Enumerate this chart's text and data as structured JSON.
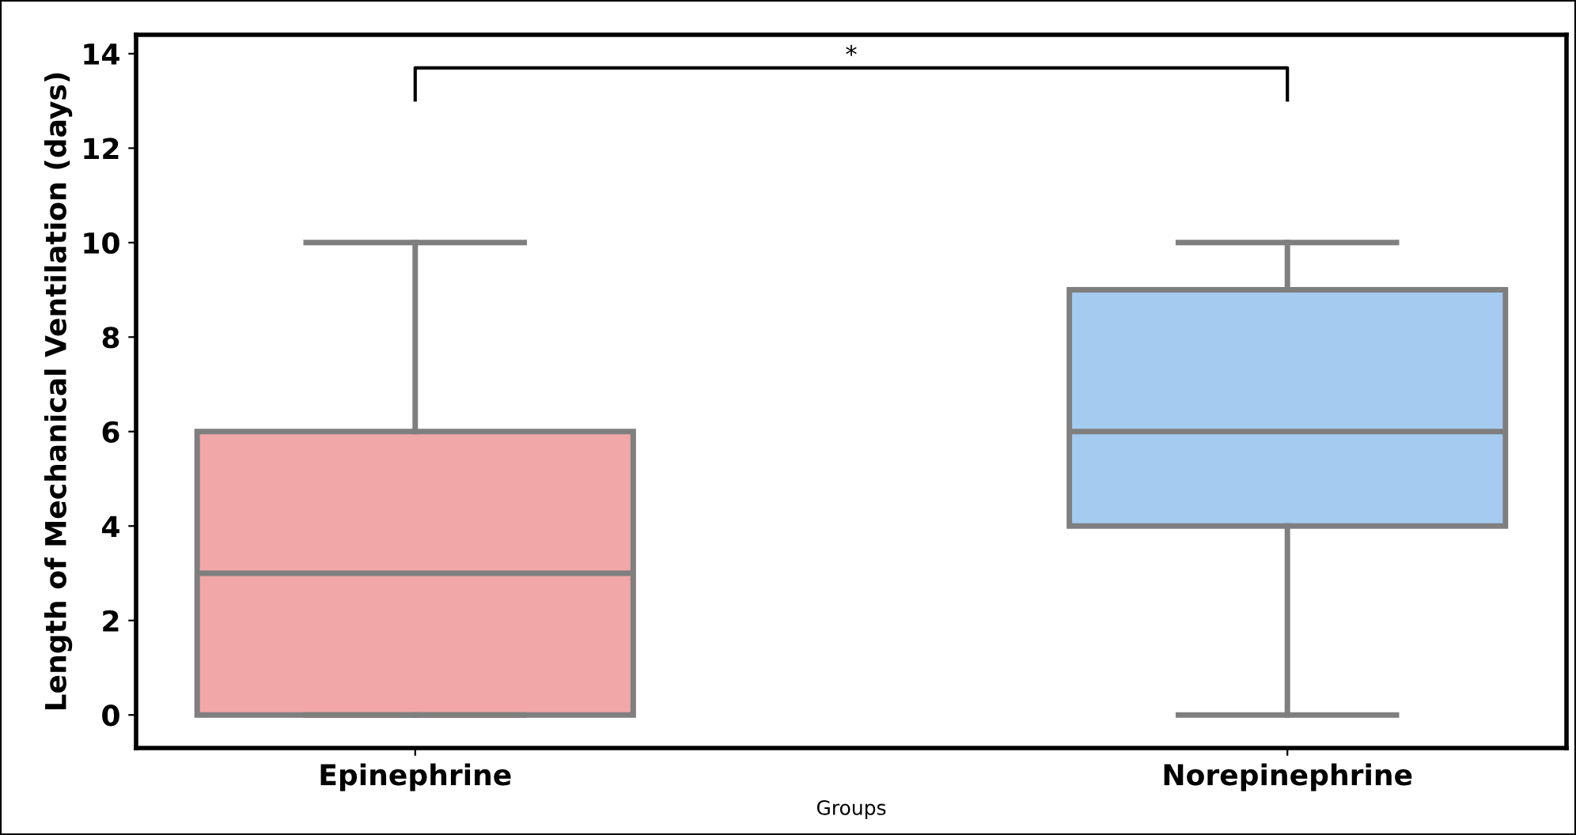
{
  "chart_data": {
    "type": "box",
    "xlabel": "Groups",
    "ylabel": "Length of Mechanical Ventilation (days)",
    "categories": [
      "Epinephrine",
      "Norepinephrine"
    ],
    "colors": [
      "#f1a7a8",
      "#a5cbf0"
    ],
    "boxes": [
      {
        "low": 0,
        "q1": 0,
        "median": 3,
        "q3": 6,
        "high": 10
      },
      {
        "low": 0,
        "q1": 4,
        "median": 6,
        "q3": 9,
        "high": 10
      }
    ],
    "ylim": [
      -0.7,
      14.4
    ],
    "yticks": [
      0,
      2,
      4,
      6,
      8,
      10,
      12,
      14
    ],
    "annotations": [
      "*"
    ],
    "grid": false,
    "legend": false
  }
}
